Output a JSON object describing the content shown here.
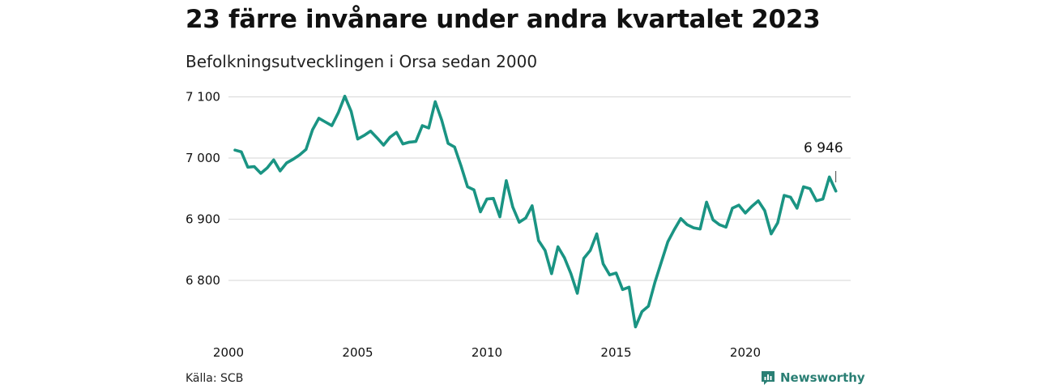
{
  "header": {
    "title": "23 färre invånare under andra kvartalet 2023",
    "subtitle": "Befolkningsutvecklingen i Orsa sedan 2000"
  },
  "footer": {
    "source": "Källa: SCB",
    "brand": "Newsworthy",
    "brand_icon": "bar-chart-icon"
  },
  "colors": {
    "line": "#1a9483",
    "grid": "#dddddd",
    "brand": "#2a7f74"
  },
  "chart_data": {
    "type": "line",
    "title": "23 färre invånare under andra kvartalet 2023",
    "subtitle": "Befolkningsutvecklingen i Orsa sedan 2000",
    "xlabel": "",
    "ylabel": "",
    "xlim": [
      2000,
      2024
    ],
    "ylim": [
      6720,
      7110
    ],
    "grid": "horizontal",
    "legend": "none",
    "x_ticks": [
      {
        "value": 2000,
        "label": "2000"
      },
      {
        "value": 2005,
        "label": "2005"
      },
      {
        "value": 2010,
        "label": "2010"
      },
      {
        "value": 2015,
        "label": "2015"
      },
      {
        "value": 2020,
        "label": "2020"
      }
    ],
    "y_ticks": [
      {
        "value": 6800,
        "label": "6 800"
      },
      {
        "value": 6900,
        "label": "6 900"
      },
      {
        "value": 7000,
        "label": "7 000"
      },
      {
        "value": 7100,
        "label": "7 100"
      }
    ],
    "end_label": "6 946",
    "series": [
      {
        "x": [
          2000.25,
          2000.5,
          2000.75,
          2001.0,
          2001.25,
          2001.5,
          2001.75,
          2002.0,
          2002.25,
          2002.5,
          2002.75,
          2003.0,
          2003.25,
          2003.5,
          2003.75,
          2004.0,
          2004.25,
          2004.5,
          2004.75,
          2005.0,
          2005.25,
          2005.5,
          2005.75,
          2006.0,
          2006.25,
          2006.5,
          2006.75,
          2007.0,
          2007.25,
          2007.5,
          2007.75,
          2008.0,
          2008.25,
          2008.5,
          2008.75,
          2009.0,
          2009.25,
          2009.5,
          2009.75,
          2010.0,
          2010.25,
          2010.5,
          2010.75,
          2011.0,
          2011.25,
          2011.5,
          2011.75,
          2012.0,
          2012.25,
          2012.5,
          2012.75,
          2013.0,
          2013.25,
          2013.5,
          2013.75,
          2014.0,
          2014.25,
          2014.5,
          2014.75,
          2015.0,
          2015.25,
          2015.5,
          2015.75,
          2016.0,
          2016.25,
          2016.5,
          2016.75,
          2017.0,
          2017.25,
          2017.5,
          2017.75,
          2018.0,
          2018.25,
          2018.5,
          2018.75,
          2019.0,
          2019.25,
          2019.5,
          2019.75,
          2020.0,
          2020.25,
          2020.5,
          2020.75,
          2021.0,
          2021.25,
          2021.5,
          2021.75,
          2022.0,
          2022.25,
          2022.5,
          2022.75,
          2023.0,
          2023.25,
          2023.5
        ],
        "y": [
          7013,
          7010,
          6985,
          6986,
          6975,
          6984,
          6997,
          6979,
          6992,
          6998,
          7005,
          7014,
          7046,
          7065,
          7059,
          7053,
          7074,
          7101,
          7076,
          7031,
          7037,
          7044,
          7033,
          7021,
          7034,
          7042,
          7023,
          7026,
          7027,
          7053,
          7049,
          7092,
          7062,
          7024,
          7018,
          6987,
          6953,
          6948,
          6912,
          6933,
          6934,
          6904,
          6963,
          6920,
          6895,
          6902,
          6922,
          6865,
          6849,
          6811,
          6855,
          6837,
          6811,
          6779,
          6836,
          6849,
          6876,
          6827,
          6809,
          6812,
          6785,
          6789,
          6724,
          6749,
          6758,
          6797,
          6830,
          6863,
          6883,
          6901,
          6891,
          6886,
          6884,
          6928,
          6899,
          6891,
          6887,
          6918,
          6923,
          6910,
          6921,
          6930,
          6914,
          6876,
          6894,
          6939,
          6936,
          6918,
          6953,
          6950,
          6930,
          6933,
          6969,
          6946
        ]
      }
    ]
  }
}
